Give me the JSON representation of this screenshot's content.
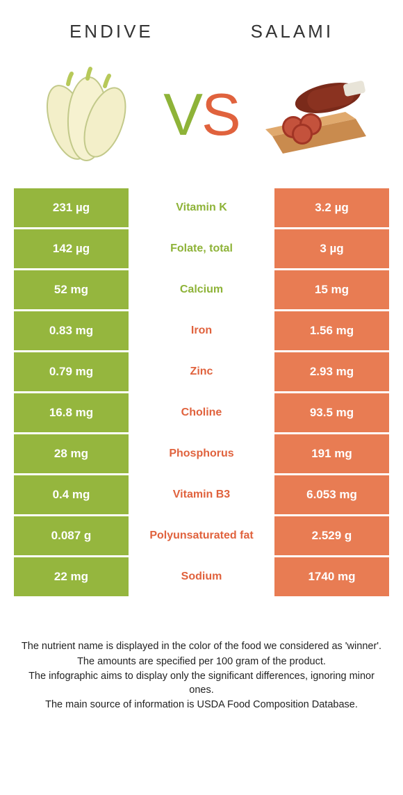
{
  "colors": {
    "left_bg": "#95b63e",
    "right_bg": "#e87c53",
    "left_text": "#8eb338",
    "right_text": "#e0623d",
    "white": "#ffffff"
  },
  "header": {
    "left_title": "Endive",
    "right_title": "Salami"
  },
  "vs": {
    "v": "V",
    "s": "S"
  },
  "rows": [
    {
      "left": "231 µg",
      "name": "Vitamin K",
      "right": "3.2 µg",
      "winner": "left"
    },
    {
      "left": "142 µg",
      "name": "Folate, total",
      "right": "3 µg",
      "winner": "left"
    },
    {
      "left": "52 mg",
      "name": "Calcium",
      "right": "15 mg",
      "winner": "left"
    },
    {
      "left": "0.83 mg",
      "name": "Iron",
      "right": "1.56 mg",
      "winner": "right"
    },
    {
      "left": "0.79 mg",
      "name": "Zinc",
      "right": "2.93 mg",
      "winner": "right"
    },
    {
      "left": "16.8 mg",
      "name": "Choline",
      "right": "93.5 mg",
      "winner": "right"
    },
    {
      "left": "28 mg",
      "name": "Phosphorus",
      "right": "191 mg",
      "winner": "right"
    },
    {
      "left": "0.4 mg",
      "name": "Vitamin B3",
      "right": "6.053 mg",
      "winner": "right"
    },
    {
      "left": "0.087 g",
      "name": "Polyunsaturated fat",
      "right": "2.529 g",
      "winner": "right"
    },
    {
      "left": "22 mg",
      "name": "Sodium",
      "right": "1740 mg",
      "winner": "right"
    }
  ],
  "footer": {
    "l1": "The nutrient name is displayed in the color of the food we considered as 'winner'.",
    "l2": "The amounts are specified per 100 gram of the product.",
    "l3": "The infographic aims to display only the significant differences, ignoring minor ones.",
    "l4": "The main source of information is USDA Food Composition Database."
  }
}
